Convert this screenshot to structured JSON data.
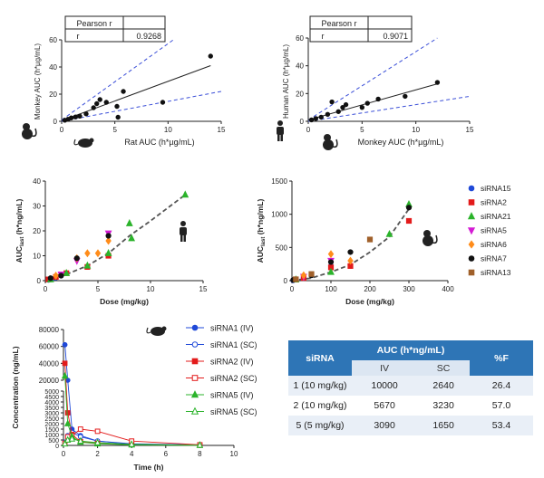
{
  "chart_data": [
    {
      "type": "scatter",
      "panel": "rat-vs-monkey",
      "xlabel": "Rat AUC (h*µg/mL)",
      "ylabel": "Monkey AUC (h*µg/mL)",
      "xlim": [
        0,
        15
      ],
      "ylim": [
        0,
        60
      ],
      "xticks": [
        0,
        5,
        10,
        15
      ],
      "yticks": [
        0,
        20,
        40,
        60
      ],
      "points": [
        [
          0.3,
          0.8
        ],
        [
          0.6,
          1.5
        ],
        [
          0.9,
          2.5
        ],
        [
          1.3,
          3.2
        ],
        [
          1.7,
          3.8
        ],
        [
          2.3,
          5.5
        ],
        [
          3.0,
          10
        ],
        [
          3.3,
          13
        ],
        [
          3.6,
          16
        ],
        [
          4.2,
          14
        ],
        [
          5.2,
          11
        ],
        [
          5.3,
          3
        ],
        [
          5.8,
          22
        ],
        [
          9.5,
          14
        ],
        [
          14,
          48
        ]
      ],
      "fit_line": [
        [
          0,
          0.5
        ],
        [
          14,
          41
        ]
      ],
      "ci_upper": [
        [
          0,
          1
        ],
        [
          10.5,
          60
        ]
      ],
      "ci_lower": [
        [
          0,
          0
        ],
        [
          15,
          22
        ]
      ],
      "stats_table": {
        "header": "Pearson r",
        "label": "r",
        "value": "0.9268"
      }
    },
    {
      "type": "scatter",
      "panel": "monkey-vs-human",
      "xlabel": "Monkey AUC (h*µg/mL)",
      "ylabel": "Human AUC (h*µg/mL)",
      "xlim": [
        0,
        15
      ],
      "ylim": [
        0,
        60
      ],
      "xticks": [
        0,
        5,
        10,
        15
      ],
      "yticks": [
        0,
        20,
        40,
        60
      ],
      "points": [
        [
          0.3,
          1
        ],
        [
          0.7,
          2
        ],
        [
          1.2,
          3
        ],
        [
          1.8,
          5
        ],
        [
          2.2,
          14
        ],
        [
          2.8,
          7
        ],
        [
          3.2,
          10
        ],
        [
          3.5,
          12
        ],
        [
          5,
          10
        ],
        [
          5.5,
          13
        ],
        [
          6.5,
          16
        ],
        [
          9,
          18
        ],
        [
          12,
          28
        ]
      ],
      "fit_line": [
        [
          0,
          1
        ],
        [
          12,
          27
        ]
      ],
      "ci_upper": [
        [
          0,
          1
        ],
        [
          12,
          60
        ]
      ],
      "ci_lower": [
        [
          0,
          0
        ],
        [
          15,
          18
        ]
      ],
      "stats_table": {
        "header": "Pearson r",
        "label": "r",
        "value": "0.9071"
      }
    },
    {
      "type": "scatter",
      "panel": "human-dose",
      "xlabel": "Dose (mg/kg)",
      "ylabel_main": "AUC",
      "ylabel_sub": "last",
      "ylabel_unit": "(h*ng/mL)",
      "xlim": [
        0,
        15
      ],
      "ylim": [
        0,
        40
      ],
      "xticks": [
        0,
        5,
        10,
        15
      ],
      "yticks": [
        0,
        10,
        20,
        30,
        40
      ],
      "trend": [
        [
          0,
          0
        ],
        [
          2,
          2.5
        ],
        [
          4,
          6
        ],
        [
          6,
          11
        ],
        [
          8,
          18
        ],
        [
          10,
          24
        ],
        [
          13.3,
          34.5
        ]
      ],
      "series": [
        {
          "name": "siRNA15",
          "color": "#1f49d8",
          "marker": "circle",
          "points": [
            [
              0.3,
              0.3
            ],
            [
              0.6,
              0.7
            ],
            [
              1,
              1.2
            ],
            [
              1.5,
              2
            ]
          ]
        },
        {
          "name": "siRNA2",
          "color": "#e31b1b",
          "marker": "square",
          "points": [
            [
              0.3,
              0.5
            ],
            [
              1,
              1.5
            ],
            [
              2,
              3
            ],
            [
              4,
              5.5
            ],
            [
              6,
              10
            ]
          ]
        },
        {
          "name": "siRNA21",
          "color": "#2bb32b",
          "marker": "triangle",
          "points": [
            [
              0.5,
              0.5
            ],
            [
              2,
              3
            ],
            [
              4,
              6
            ],
            [
              6,
              11
            ],
            [
              8,
              23
            ],
            [
              8.2,
              17
            ],
            [
              13.3,
              34.5
            ]
          ]
        },
        {
          "name": "siRNA5",
          "color": "#d41bd4",
          "marker": "triangle-down",
          "points": [
            [
              1.5,
              2.5
            ],
            [
              3,
              8
            ],
            [
              6,
              19
            ]
          ]
        },
        {
          "name": "siRNA6",
          "color": "#ff8c1a",
          "marker": "diamond",
          "points": [
            [
              1,
              2
            ],
            [
              3,
              9
            ],
            [
              4,
              11
            ],
            [
              5,
              11
            ],
            [
              6,
              16
            ]
          ]
        },
        {
          "name": "siRNA7",
          "color": "#111111",
          "marker": "circle",
          "points": [
            [
              0.5,
              1
            ],
            [
              1.5,
              2
            ],
            [
              3,
              9
            ],
            [
              6,
              18
            ]
          ]
        }
      ]
    },
    {
      "type": "scatter",
      "panel": "monkey-dose",
      "xlabel": "Dose (mg/kg)",
      "ylabel_main": "AUC",
      "ylabel_sub": "last",
      "ylabel_unit": "(h*ng/mL)",
      "xlim": [
        0,
        400
      ],
      "ylim": [
        0,
        1500
      ],
      "xticks": [
        0,
        100,
        200,
        300,
        400
      ],
      "yticks": [
        0,
        500,
        1000,
        1500
      ],
      "trend": [
        [
          0,
          0
        ],
        [
          50,
          40
        ],
        [
          100,
          130
        ],
        [
          150,
          240
        ],
        [
          200,
          430
        ],
        [
          250,
          660
        ],
        [
          300,
          1080
        ]
      ],
      "series": [
        {
          "name": "siRNA15",
          "color": "#1f49d8",
          "marker": "circle",
          "points": [
            [
              3,
              5
            ],
            [
              10,
              15
            ],
            [
              30,
              40
            ],
            [
              100,
              220
            ]
          ]
        },
        {
          "name": "siRNA2",
          "color": "#e31b1b",
          "marker": "square",
          "points": [
            [
              10,
              20
            ],
            [
              30,
              40
            ],
            [
              100,
              200
            ],
            [
              150,
              220
            ],
            [
              300,
              900
            ]
          ]
        },
        {
          "name": "siRNA21",
          "color": "#2bb32b",
          "marker": "triangle",
          "points": [
            [
              10,
              15
            ],
            [
              100,
              130
            ],
            [
              250,
              700
            ],
            [
              300,
              1150
            ]
          ]
        },
        {
          "name": "siRNA5",
          "color": "#d41bd4",
          "marker": "triangle-down",
          "points": [
            [
              30,
              60
            ],
            [
              100,
              300
            ]
          ]
        },
        {
          "name": "siRNA6",
          "color": "#ff8c1a",
          "marker": "diamond",
          "points": [
            [
              30,
              80
            ],
            [
              100,
              400
            ],
            [
              150,
              300
            ]
          ]
        },
        {
          "name": "siRNA7",
          "color": "#111111",
          "marker": "circle",
          "points": [
            [
              3,
              10
            ],
            [
              50,
              80
            ],
            [
              100,
              280
            ],
            [
              150,
              430
            ],
            [
              300,
              1100
            ]
          ]
        },
        {
          "name": "siRNA13",
          "color": "#a0602a",
          "marker": "square",
          "points": [
            [
              10,
              20
            ],
            [
              50,
              100
            ],
            [
              200,
              620
            ]
          ]
        }
      ],
      "legend": [
        "siRNA15",
        "siRNA2",
        "siRNA21",
        "siRNA5",
        "siRNA6",
        "siRNA7",
        "siRNA13"
      ]
    },
    {
      "type": "line",
      "panel": "mouse-pk",
      "xlabel": "Time (h)",
      "ylabel": "Concentration (ng/mL)",
      "xlim": [
        0,
        10
      ],
      "y_upper_ticks": [
        20000,
        40000,
        60000,
        80000
      ],
      "y_lower_ticks": [
        0,
        500,
        1000,
        1500,
        2000,
        2500,
        3000,
        3500,
        4000,
        4500,
        5000
      ],
      "xticks": [
        0,
        2,
        4,
        6,
        8,
        10
      ],
      "series": [
        {
          "name": "siRNA1 (IV)",
          "color": "#1f49d8",
          "filled": true,
          "marker": "circle",
          "x": [
            0.083,
            0.25,
            0.5,
            1,
            2,
            4,
            8
          ],
          "y": [
            62000,
            5200,
            1500,
            900,
            400,
            120,
            40
          ]
        },
        {
          "name": "siRNA1 (SC)",
          "color": "#1f49d8",
          "filled": false,
          "marker": "circle",
          "x": [
            0.083,
            0.25,
            0.5,
            1,
            2,
            4,
            8
          ],
          "y": [
            300,
            900,
            1200,
            800,
            400,
            150,
            40
          ]
        },
        {
          "name": "siRNA2 (IV)",
          "color": "#e31b1b",
          "filled": true,
          "marker": "square",
          "x": [
            0.083,
            0.25,
            0.5,
            1,
            2,
            4,
            8
          ],
          "y": [
            40000,
            3000,
            1000,
            350,
            200,
            80,
            20
          ]
        },
        {
          "name": "siRNA2 (SC)",
          "color": "#e31b1b",
          "filled": false,
          "marker": "square",
          "x": [
            0.083,
            0.25,
            0.5,
            1,
            2,
            4,
            8
          ],
          "y": [
            200,
            800,
            900,
            1500,
            1300,
            400,
            60
          ]
        },
        {
          "name": "siRNA5 (IV)",
          "color": "#2bb32b",
          "filled": true,
          "marker": "triangle",
          "x": [
            0.083,
            0.25,
            0.5,
            1,
            2,
            4,
            8
          ],
          "y": [
            25000,
            2000,
            800,
            300,
            150,
            50,
            10
          ]
        },
        {
          "name": "siRNA5 (SC)",
          "color": "#2bb32b",
          "filled": false,
          "marker": "triangle",
          "x": [
            0.083,
            0.25,
            0.5,
            1,
            2,
            4,
            8
          ],
          "y": [
            150,
            500,
            600,
            400,
            250,
            100,
            20
          ]
        }
      ]
    },
    {
      "type": "table",
      "panel": "auc-table",
      "headers": {
        "sirna": "siRNA",
        "auc": "AUC (h*ng/mL)",
        "iv": "IV",
        "sc": "SC",
        "f": "%F"
      },
      "rows": [
        {
          "sirna": "1 (10 mg/kg)",
          "iv": "10000",
          "sc": "2640",
          "f": "26.4"
        },
        {
          "sirna": "2 (10 mg/kg)",
          "iv": "5670",
          "sc": "3230",
          "f": "57.0"
        },
        {
          "sirna": "5 (5 mg/kg)",
          "iv": "3090",
          "sc": "1650",
          "f": "53.4"
        }
      ]
    }
  ]
}
